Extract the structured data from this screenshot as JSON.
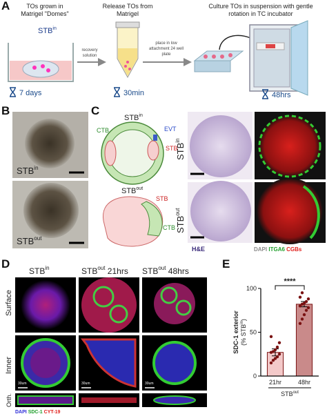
{
  "panel_a": {
    "label": "A",
    "step1": {
      "title": [
        "TOs grown in",
        "Matrigel \"Domes\""
      ],
      "group": {
        "base": "STB",
        "sup": "in"
      },
      "arrow": [
        "recovery",
        "solution"
      ],
      "time": "7 days"
    },
    "step2": {
      "title": [
        "Release TOs from",
        "Matrigel"
      ],
      "arrow": [
        "place in  low",
        "attachment 24 well",
        "plate"
      ],
      "time": "30min"
    },
    "step3": {
      "title": [
        "Culture TOs in suspension with gentle",
        "rotation in TC incubator"
      ],
      "time": "48hrs"
    }
  },
  "panel_b": {
    "label": "B",
    "images": [
      {
        "base": "STB",
        "sup": "in"
      },
      {
        "base": "STB",
        "sup": "out"
      }
    ]
  },
  "panel_c": {
    "label": "C",
    "diagram_top": {
      "title": {
        "base": "STB",
        "sup": "in"
      },
      "labels": [
        "CTB",
        "EVT",
        "STB"
      ]
    },
    "diagram_bottom": {
      "title": {
        "base": "STB",
        "sup": "out"
      },
      "labels": [
        "STB",
        "CTB"
      ]
    },
    "rows": [
      {
        "base": "STB",
        "sup": "in"
      },
      {
        "base": "STB",
        "sup": "out"
      }
    ],
    "stain_he": "H&E",
    "stains": [
      {
        "text": "DAPI",
        "color": "#8a8a8a"
      },
      {
        "text": "ITGA6",
        "color": "#1e9e2a"
      },
      {
        "text": "CGBs",
        "color": "#e0201c"
      }
    ]
  },
  "panel_d": {
    "label": "D",
    "columns": [
      {
        "base": "STB",
        "sup": "in",
        "suffix": ""
      },
      {
        "base": "STB",
        "sup": "out",
        "suffix": " 21hrs"
      },
      {
        "base": "STB",
        "sup": "out",
        "suffix": " 48hrs"
      }
    ],
    "rows": [
      "Surface",
      "Inner",
      "Orth."
    ],
    "scale_bar": "30um",
    "stains": [
      {
        "text": "DAPI",
        "color": "#2a2ad8"
      },
      {
        "text": "SDC-1",
        "color": "#1e9e2a"
      },
      {
        "text": "CYT-19",
        "color": "#e0201c"
      }
    ]
  },
  "chart_data": {
    "type": "bar",
    "label": "E",
    "ylabel": {
      "line1": "SDC-1 exterior",
      "prefix": "(% STB",
      "sup": "in",
      "suffix": ")"
    },
    "categories": [
      "21hr",
      "48hr"
    ],
    "values": [
      27,
      82
    ],
    "errors": [
      4,
      3
    ],
    "points": [
      [
        15,
        18,
        20,
        22,
        25,
        27,
        28,
        30,
        33,
        38,
        45
      ],
      [
        60,
        65,
        70,
        75,
        78,
        80,
        82,
        83,
        85,
        88,
        90,
        95
      ]
    ],
    "ylim": [
      0,
      100
    ],
    "yticks": [
      0,
      50,
      100
    ],
    "significance": "****",
    "group_label": {
      "base": "STB",
      "sup": "out"
    },
    "colors": [
      "#f3c9c9",
      "#c98a8a"
    ],
    "edge": "#7a1212"
  }
}
